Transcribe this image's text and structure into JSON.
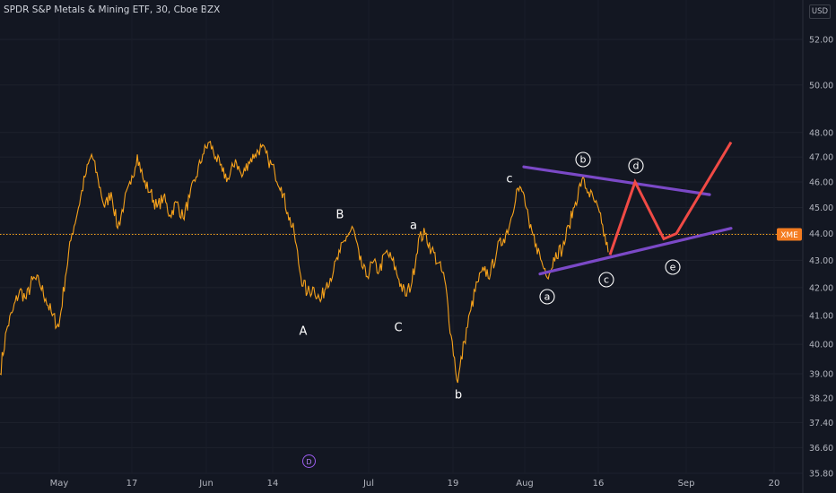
{
  "title": "SPDR S&P Metals & Mining ETF, 30, Cboe BZX",
  "currency": "USD",
  "symbol_tag": "XME",
  "event_marker": "D",
  "chart_data": {
    "type": "line",
    "title": "SPDR S&P Metals & Mining ETF, 30, Cboe BZX",
    "xlabel": "",
    "ylabel": "",
    "x_ticks": [
      "May",
      "17",
      "Jun",
      "14",
      "Jul",
      "19",
      "Aug",
      "16",
      "Sep",
      "20"
    ],
    "y_ticks": [
      "52.00",
      "50.00",
      "48.00",
      "47.00",
      "46.00",
      "45.00",
      "44.00",
      "43.00",
      "42.00",
      "41.00",
      "40.00",
      "39.00",
      "38.20",
      "37.40",
      "36.60",
      "35.80"
    ],
    "y_scale": "log",
    "ylim": [
      35.5,
      53.5
    ],
    "current_price": 43.97,
    "price_color": "#f7a21b",
    "series": [
      {
        "values": [
          39.0,
          40.5,
          41.2,
          41.9,
          41.6,
          42.3,
          42.2,
          41.6,
          41.0,
          40.6,
          42.4,
          44.0,
          45.0,
          46.2,
          47.1,
          46.1,
          45.0,
          45.6,
          44.2,
          45.2,
          45.9,
          47.1,
          46.0,
          45.6,
          45.0,
          45.4,
          44.7,
          45.2,
          44.6,
          45.4,
          46.2,
          47.1,
          47.6,
          47.0,
          46.4,
          46.1,
          46.9,
          46.2,
          46.8,
          47.1,
          47.4,
          46.9,
          46.4,
          45.8,
          44.8,
          44.0,
          42.4,
          41.8,
          42.0,
          41.5,
          42.2,
          42.6,
          43.3,
          43.9,
          44.2,
          43.0,
          42.4,
          42.9,
          42.6,
          43.3,
          43.0,
          42.3,
          41.7,
          42.2,
          43.8,
          44.0,
          43.4,
          42.9,
          42.3,
          40.3,
          38.7,
          40.1,
          41.2,
          42.2,
          42.6,
          42.5,
          43.4,
          43.8,
          44.4,
          45.7,
          45.6,
          44.2,
          43.6,
          42.8,
          42.5,
          43.3,
          43.4,
          44.3,
          45.2,
          46.1,
          45.6,
          45.2,
          44.4,
          43.3
        ],
        "color": "#f7a21b"
      }
    ],
    "wave_labels": [
      "A",
      "B",
      "C",
      "a",
      "b",
      "c"
    ],
    "circled_labels": [
      "a",
      "b",
      "c",
      "d",
      "e"
    ],
    "trendlines": [
      {
        "kind": "upper",
        "color": "#7b49c7",
        "from": 46.6,
        "to": 45.5
      },
      {
        "kind": "lower",
        "color": "#7b49c7",
        "from": 42.5,
        "to": 44.2
      }
    ],
    "projection": {
      "color": "#f04a45",
      "values": [
        43.2,
        46.0,
        43.8,
        44.0,
        47.6
      ]
    }
  }
}
